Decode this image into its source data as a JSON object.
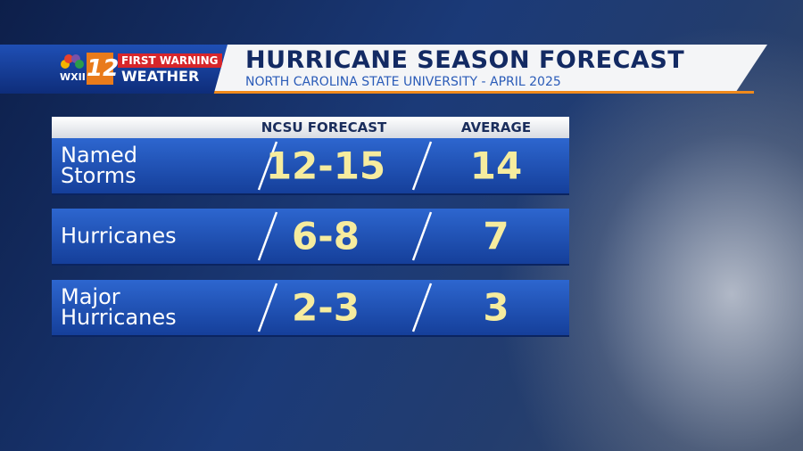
{
  "logo": {
    "station": "WXII",
    "channel": "12",
    "brand_top": "FIRST WARNING",
    "brand_bottom": "WEATHER"
  },
  "header": {
    "title": "HURRICANE SEASON FORECAST",
    "subtitle": "NORTH CAROLINA STATE UNIVERSITY - APRIL 2025"
  },
  "table": {
    "columns": [
      "NCSU FORECAST",
      "AVERAGE"
    ],
    "rows": [
      [
        "Named Storms",
        "12-15",
        "14"
      ],
      [
        "Hurricanes",
        "6-8",
        "7"
      ],
      [
        "Major Hurricanes",
        "2-3",
        "3"
      ]
    ]
  }
}
